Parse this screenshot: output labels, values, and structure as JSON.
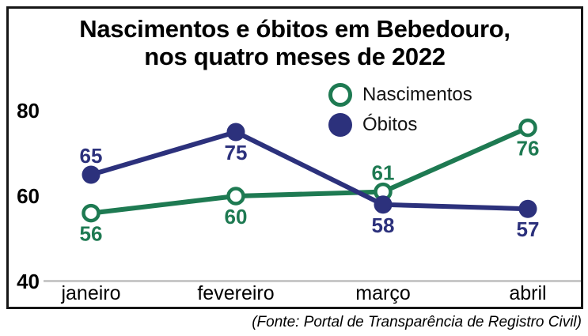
{
  "title": {
    "line1": "Nascimentos e óbitos em Bebedouro,",
    "line2": "nos quatro meses de 2022"
  },
  "legend": {
    "items": [
      {
        "label": "Nascimentos",
        "marker": "open-circle",
        "color": "#1e7a52"
      },
      {
        "label": "Óbitos",
        "marker": "filled-circle",
        "color": "#2c317c"
      }
    ]
  },
  "footer": {
    "source": "(Fonte: Portal de Transparência de Registro Civil)"
  },
  "colors": {
    "nascimentos": "#1e7a52",
    "obitos": "#2c317c",
    "axis_line": "#c8c8c8",
    "text": "#000000",
    "frame": "#161616"
  },
  "chart_data": {
    "type": "line",
    "title": "Nascimentos e óbitos em Bebedouro, nos quatro meses de 2022",
    "categories": [
      "janeiro",
      "fevereiro",
      "março",
      "abril"
    ],
    "series": [
      {
        "name": "Nascimentos",
        "color": "#1e7a52",
        "marker": "open-circle",
        "values": [
          56,
          60,
          61,
          76
        ],
        "label_positions": [
          "below",
          "below",
          "above",
          "below"
        ]
      },
      {
        "name": "Óbitos",
        "color": "#2c317c",
        "marker": "filled-circle",
        "values": [
          65,
          75,
          58,
          57
        ],
        "label_positions": [
          "above",
          "below",
          "below",
          "below"
        ]
      }
    ],
    "yticks": [
      40,
      60,
      80
    ],
    "ylim": [
      40,
      85
    ],
    "grid": false,
    "legend_position": "top-center-inside",
    "source": "(Fonte: Portal de Transparência de Registro Civil)"
  }
}
